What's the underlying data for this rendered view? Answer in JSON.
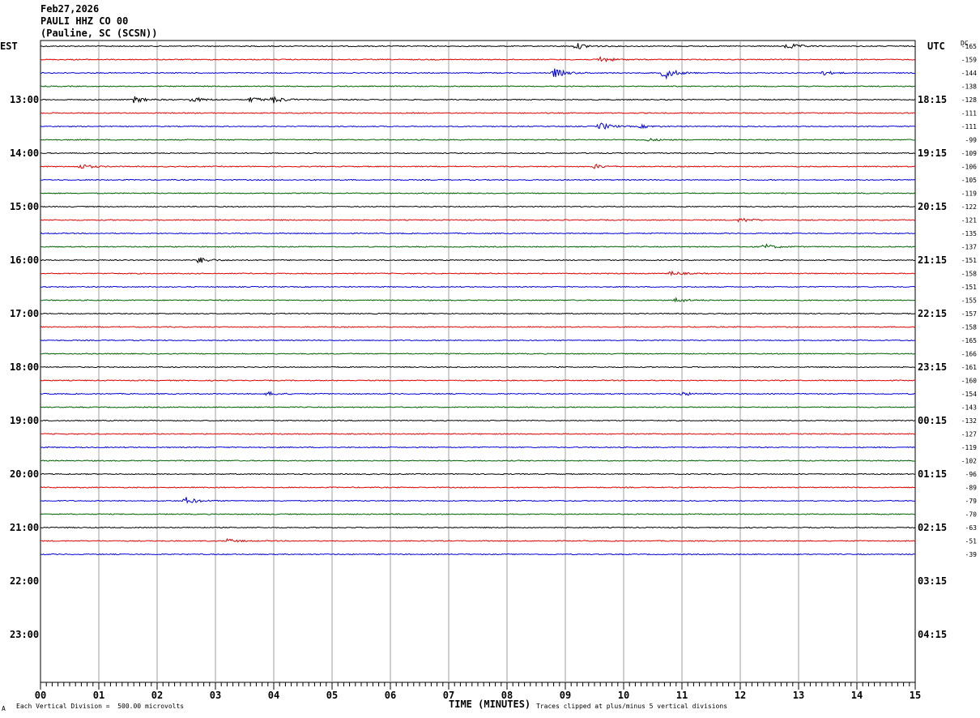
{
  "header": {
    "date": "Feb27,2026",
    "station": "PAULI HHZ CO 00",
    "location": "(Pauline, SC (SCSN))"
  },
  "left_tz": "EST",
  "right_tz": "UTC",
  "dc_label": "DC",
  "footer": {
    "scale_note": "Each Vertical Division =  500.00 microvolts",
    "clip_note": "Traces clipped at plus/minus 5 vertical divisions",
    "corner_mark": "A"
  },
  "colors": {
    "trace_cycle": [
      "#000000",
      "#e00000",
      "#0000e0",
      "#006000"
    ],
    "grid": "#a0a0a0"
  },
  "chart_data": {
    "type": "line",
    "title": "",
    "xlabel": "TIME (MINUTES)",
    "ylabel": "",
    "xlim": [
      0,
      15
    ],
    "x_ticks": [
      "00",
      "01",
      "02",
      "03",
      "04",
      "05",
      "06",
      "07",
      "08",
      "09",
      "10",
      "11",
      "12",
      "13",
      "14",
      "15"
    ],
    "minutes_per_row": 15,
    "rows_total": 48,
    "left_hour_labels": [
      "13:00",
      "14:00",
      "15:00",
      "16:00",
      "17:00",
      "18:00",
      "19:00",
      "20:00",
      "21:00",
      "22:00",
      "23:00"
    ],
    "right_hour_labels": [
      "18:15",
      "19:15",
      "20:15",
      "21:15",
      "22:15",
      "23:15",
      "00:15",
      "01:15",
      "02:15",
      "03:15",
      "04:15"
    ],
    "dc_offsets": [
      -165,
      -159,
      -144,
      -138,
      -128,
      -111,
      -111,
      -99,
      -109,
      -106,
      -105,
      -119,
      -122,
      -121,
      -135,
      -137,
      -151,
      -158,
      -151,
      -155,
      -157,
      -158,
      -165,
      -166,
      -161,
      -160,
      -154,
      -143,
      -132,
      -127,
      -119,
      -102,
      -96,
      -89,
      -79,
      -70,
      -63,
      -51,
      -39
    ],
    "events": [
      {
        "row": 0,
        "minute": 9.2,
        "amp": 0.5
      },
      {
        "row": 0,
        "minute": 12.8,
        "amp": 0.55
      },
      {
        "row": 1,
        "minute": 9.6,
        "amp": 0.5
      },
      {
        "row": 2,
        "minute": 8.8,
        "amp": 0.8
      },
      {
        "row": 2,
        "minute": 10.7,
        "amp": 1.0
      },
      {
        "row": 2,
        "minute": 13.4,
        "amp": 0.4
      },
      {
        "row": 4,
        "minute": 1.6,
        "amp": 0.55
      },
      {
        "row": 4,
        "minute": 2.6,
        "amp": 0.45
      },
      {
        "row": 4,
        "minute": 3.6,
        "amp": 0.45
      },
      {
        "row": 4,
        "minute": 4.0,
        "amp": 0.5
      },
      {
        "row": 6,
        "minute": 9.6,
        "amp": 0.6
      },
      {
        "row": 6,
        "minute": 10.3,
        "amp": 0.25
      },
      {
        "row": 7,
        "minute": 10.4,
        "amp": 0.25
      },
      {
        "row": 9,
        "minute": 0.7,
        "amp": 0.4
      },
      {
        "row": 9,
        "minute": 9.5,
        "amp": 0.35
      },
      {
        "row": 13,
        "minute": 12.0,
        "amp": 0.4
      },
      {
        "row": 15,
        "minute": 12.4,
        "amp": 0.45
      },
      {
        "row": 16,
        "minute": 2.7,
        "amp": 0.55
      },
      {
        "row": 17,
        "minute": 10.8,
        "amp": 0.4
      },
      {
        "row": 19,
        "minute": 10.9,
        "amp": 0.4
      },
      {
        "row": 26,
        "minute": 3.9,
        "amp": 0.3
      },
      {
        "row": 26,
        "minute": 11.0,
        "amp": 0.3
      },
      {
        "row": 34,
        "minute": 2.5,
        "amp": 0.55
      },
      {
        "row": 37,
        "minute": 3.2,
        "amp": 0.3
      }
    ]
  }
}
